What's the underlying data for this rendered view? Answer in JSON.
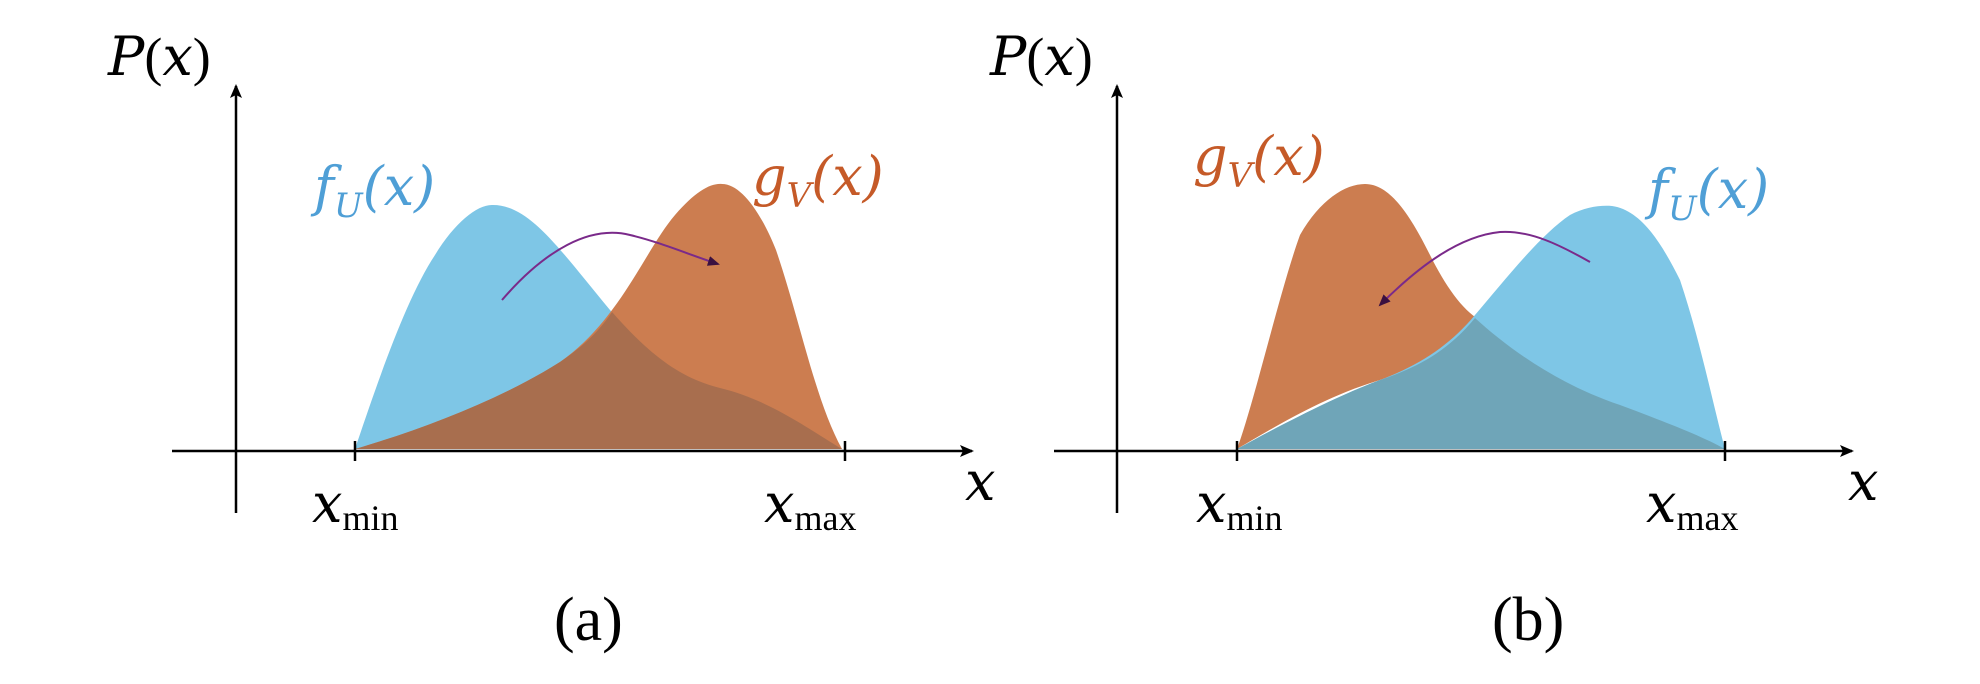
{
  "colors": {
    "f_U": "#7ec6e6",
    "g_V": "#cc7d50",
    "overlap_a": "#a86e4e",
    "overlap_b": "#6fa5b8",
    "g_V_label": "#c55a28",
    "f_U_label": "#4f9fd6",
    "arrow": "#7a2a8a",
    "axis": "#000000"
  },
  "panels": [
    {
      "caption": "(a)",
      "y_axis_label": "P(x)",
      "x_axis_label": "x",
      "x_min_label": "min",
      "x_max_label": "max",
      "f_label": {
        "func": "f",
        "sub": "U",
        "arg": "(x)"
      },
      "g_label": {
        "func": "g",
        "sub": "V",
        "arg": "(x)"
      },
      "arrow": "f_U to g_V"
    },
    {
      "caption": "(b)",
      "y_axis_label": "P(x)",
      "x_axis_label": "x",
      "x_min_label": "min",
      "x_max_label": "max",
      "f_label": {
        "func": "f",
        "sub": "U",
        "arg": "(x)"
      },
      "g_label": {
        "func": "g",
        "sub": "V",
        "arg": "(x)"
      },
      "arrow": "f_U to g_V"
    }
  ]
}
